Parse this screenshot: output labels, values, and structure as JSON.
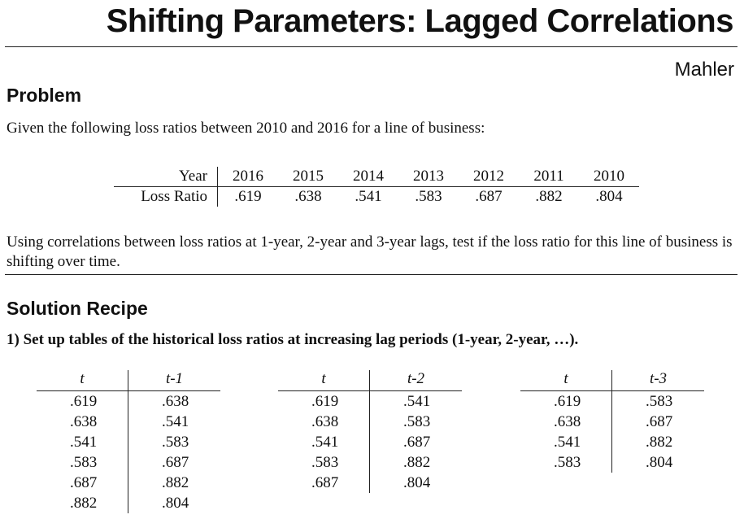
{
  "title": "Shifting Parameters: Lagged Correlations",
  "author": "Mahler",
  "problem": {
    "heading": "Problem",
    "intro": "Given the following loss ratios between 2010 and 2016 for a line of business:",
    "table": {
      "row_header_year": "Year",
      "row_header_lr": "Loss Ratio",
      "years": [
        "2016",
        "2015",
        "2014",
        "2013",
        "2012",
        "2011",
        "2010"
      ],
      "loss_ratios": [
        ".619",
        ".638",
        ".541",
        ".583",
        ".687",
        ".882",
        ".804"
      ]
    },
    "question": "Using correlations between loss ratios at 1-year, 2-year and 3-year lags, test if the loss ratio for this line of business is shifting over time."
  },
  "solution": {
    "heading": "Solution Recipe",
    "step1": "1)  Set up tables of the historical loss ratios at increasing lag periods (1-year, 2-year, …).",
    "lag_tables": [
      {
        "col1": "t",
        "col2": "t-1",
        "rows": [
          [
            ".619",
            ".638"
          ],
          [
            ".638",
            ".541"
          ],
          [
            ".541",
            ".583"
          ],
          [
            ".583",
            ".687"
          ],
          [
            ".687",
            ".882"
          ],
          [
            ".882",
            ".804"
          ]
        ]
      },
      {
        "col1": "t",
        "col2": "t-2",
        "rows": [
          [
            ".619",
            ".541"
          ],
          [
            ".638",
            ".583"
          ],
          [
            ".541",
            ".687"
          ],
          [
            ".583",
            ".882"
          ],
          [
            ".687",
            ".804"
          ]
        ]
      },
      {
        "col1": "t",
        "col2": "t-3",
        "rows": [
          [
            ".619",
            ".583"
          ],
          [
            ".638",
            ".687"
          ],
          [
            ".541",
            ".882"
          ],
          [
            ".583",
            ".804"
          ]
        ]
      }
    ]
  }
}
